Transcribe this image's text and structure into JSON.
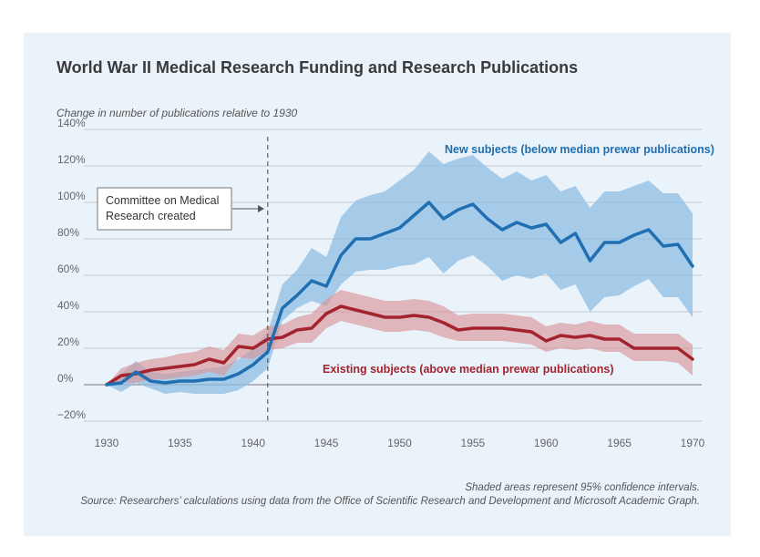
{
  "chart_data": {
    "type": "line",
    "title": "World War II Medical Research Funding and Research Publications",
    "ylabel": "Change in number of publications relative to 1930",
    "xlabel": "",
    "xlim": [
      1930,
      1970
    ],
    "ylim": [
      -20,
      140
    ],
    "xticks": [
      1930,
      1935,
      1940,
      1945,
      1950,
      1955,
      1960,
      1965,
      1970
    ],
    "yticks": [
      {
        "value": -20,
        "label": "−20%"
      },
      {
        "value": 0,
        "label": "0%"
      },
      {
        "value": 20,
        "label": "20%"
      },
      {
        "value": 40,
        "label": "40%"
      },
      {
        "value": 60,
        "label": "60%"
      },
      {
        "value": 80,
        "label": "80%"
      },
      {
        "value": 100,
        "label": "100%"
      },
      {
        "value": 120,
        "label": "120%"
      },
      {
        "value": 140,
        "label": "140%"
      }
    ],
    "grid": true,
    "x": [
      1930,
      1931,
      1932,
      1933,
      1934,
      1935,
      1936,
      1937,
      1938,
      1939,
      1940,
      1941,
      1942,
      1943,
      1944,
      1945,
      1946,
      1947,
      1948,
      1949,
      1950,
      1951,
      1952,
      1953,
      1954,
      1955,
      1956,
      1957,
      1958,
      1959,
      1960,
      1961,
      1962,
      1963,
      1964,
      1965,
      1966,
      1967,
      1968,
      1969,
      1970
    ],
    "series": [
      {
        "name": "New subjects (below median prewar publications)",
        "color": "#1f6fb2",
        "band_color": "#8fbde3",
        "values": [
          0,
          1,
          7,
          2,
          1,
          2,
          2,
          3,
          3,
          6,
          11,
          18,
          42,
          49,
          57,
          54,
          71,
          80,
          80,
          83,
          86,
          93,
          100,
          91,
          96,
          99,
          91,
          85,
          89,
          86,
          88,
          78,
          83,
          68,
          78,
          78,
          82,
          85,
          76,
          77,
          65
        ],
        "lower": [
          0,
          -4,
          1,
          -2,
          -5,
          -4,
          -5,
          -5,
          -5,
          -3,
          2,
          9,
          35,
          42,
          46,
          43,
          55,
          62,
          63,
          63,
          65,
          66,
          70,
          61,
          68,
          71,
          65,
          57,
          60,
          58,
          61,
          52,
          55,
          40,
          48,
          49,
          54,
          58,
          48,
          48,
          37
        ],
        "upper": [
          0,
          6,
          13,
          7,
          6,
          7,
          8,
          9,
          10,
          14,
          20,
          29,
          55,
          63,
          75,
          70,
          92,
          101,
          104,
          106,
          112,
          118,
          128,
          121,
          124,
          126,
          119,
          113,
          117,
          112,
          115,
          106,
          109,
          97,
          106,
          106,
          109,
          112,
          105,
          105,
          94
        ]
      },
      {
        "name": "Existing subjects (above median prewar publications)",
        "color": "#a3242f",
        "band_color": "#d9959a",
        "values": [
          0,
          5,
          6,
          8,
          9,
          10,
          11,
          14,
          12,
          21,
          20,
          25,
          26,
          30,
          31,
          39,
          43,
          41,
          39,
          37,
          37,
          38,
          37,
          34,
          30,
          31,
          31,
          31,
          30,
          29,
          24,
          27,
          26,
          27,
          25,
          25,
          20,
          20,
          20,
          20,
          14
        ],
        "lower": [
          0,
          1,
          1,
          3,
          3,
          4,
          5,
          7,
          5,
          15,
          14,
          19,
          20,
          23,
          23,
          31,
          35,
          33,
          31,
          29,
          29,
          30,
          29,
          26,
          24,
          24,
          24,
          24,
          23,
          22,
          18,
          20,
          19,
          20,
          18,
          18,
          13,
          13,
          13,
          12,
          5
        ],
        "upper": [
          0,
          9,
          12,
          14,
          15,
          17,
          18,
          21,
          19,
          28,
          27,
          32,
          33,
          37,
          39,
          47,
          52,
          50,
          48,
          46,
          46,
          47,
          46,
          43,
          38,
          39,
          39,
          39,
          38,
          37,
          32,
          34,
          33,
          35,
          33,
          33,
          28,
          28,
          28,
          28,
          22
        ]
      }
    ],
    "event_line": {
      "x": 1941,
      "label": "Committee on Medical Research created"
    },
    "annotations": {
      "ci_note": "Shaded areas represent 95% confidence intervals.",
      "source": "Source: Researchers’ calculations using data from the Office of Scientific Research and Development and Microsoft Academic Graph."
    }
  }
}
